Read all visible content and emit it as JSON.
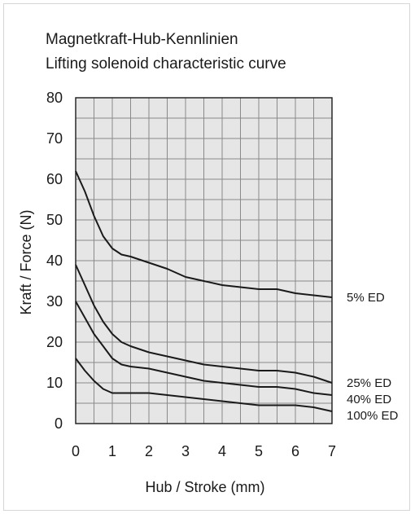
{
  "chart_data": {
    "type": "line",
    "title": "Magnetkraft-Hub-Kennlinien",
    "subtitle": "Lifting solenoid characteristic curve",
    "xlabel": "Hub / Stroke (mm)",
    "ylabel": "Kraft / Force (N)",
    "xlim": [
      0,
      7
    ],
    "ylim": [
      0,
      80
    ],
    "x_ticks": [
      "0",
      "1",
      "2",
      "3",
      "4",
      "5",
      "6",
      "7"
    ],
    "y_ticks": [
      "0",
      "10",
      "20",
      "30",
      "40",
      "50",
      "60",
      "70",
      "80"
    ],
    "grid": true,
    "grid_x_step": 0.5,
    "grid_y_step": 5,
    "series": [
      {
        "name": "5% ED",
        "x": [
          0,
          0.25,
          0.5,
          0.75,
          1.0,
          1.25,
          1.5,
          2.0,
          2.5,
          3.0,
          3.5,
          4.0,
          4.5,
          5.0,
          5.5,
          6.0,
          6.5,
          7.0
        ],
        "y": [
          62,
          57,
          51,
          46,
          43,
          41.5,
          41,
          39.5,
          38,
          36,
          35,
          34,
          33.5,
          33,
          33,
          32,
          31.5,
          31
        ]
      },
      {
        "name": "25% ED",
        "x": [
          0,
          0.25,
          0.5,
          0.75,
          1.0,
          1.25,
          1.5,
          2.0,
          2.5,
          3.0,
          3.5,
          4.0,
          4.5,
          5.0,
          5.5,
          6.0,
          6.5,
          7.0
        ],
        "y": [
          39,
          34,
          29,
          25,
          22,
          20,
          19,
          17.5,
          16.5,
          15.5,
          14.5,
          14,
          13.5,
          13,
          13,
          12.5,
          11.5,
          10
        ]
      },
      {
        "name": "40% ED",
        "x": [
          0,
          0.25,
          0.5,
          0.75,
          1.0,
          1.25,
          1.5,
          2.0,
          2.5,
          3.0,
          3.5,
          4.0,
          4.5,
          5.0,
          5.5,
          6.0,
          6.5,
          7.0
        ],
        "y": [
          30,
          26,
          22,
          19,
          16,
          14.5,
          14,
          13.5,
          12.5,
          11.5,
          10.5,
          10,
          9.5,
          9,
          9,
          8.5,
          7.5,
          7
        ]
      },
      {
        "name": "100% ED",
        "x": [
          0,
          0.25,
          0.5,
          0.75,
          1.0,
          1.25,
          1.5,
          2.0,
          2.5,
          3.0,
          3.5,
          4.0,
          4.5,
          5.0,
          5.5,
          6.0,
          6.5,
          7.0
        ],
        "y": [
          16,
          13,
          10.5,
          8.5,
          7.5,
          7.5,
          7.5,
          7.5,
          7,
          6.5,
          6,
          5.5,
          5,
          4.5,
          4.5,
          4.5,
          4,
          3
        ]
      }
    ],
    "colors": {
      "plot_background": "#e6e6e6",
      "grid": "#8a8a8a",
      "line": "#1a1a1a",
      "frame": "#d6d6d6"
    }
  }
}
